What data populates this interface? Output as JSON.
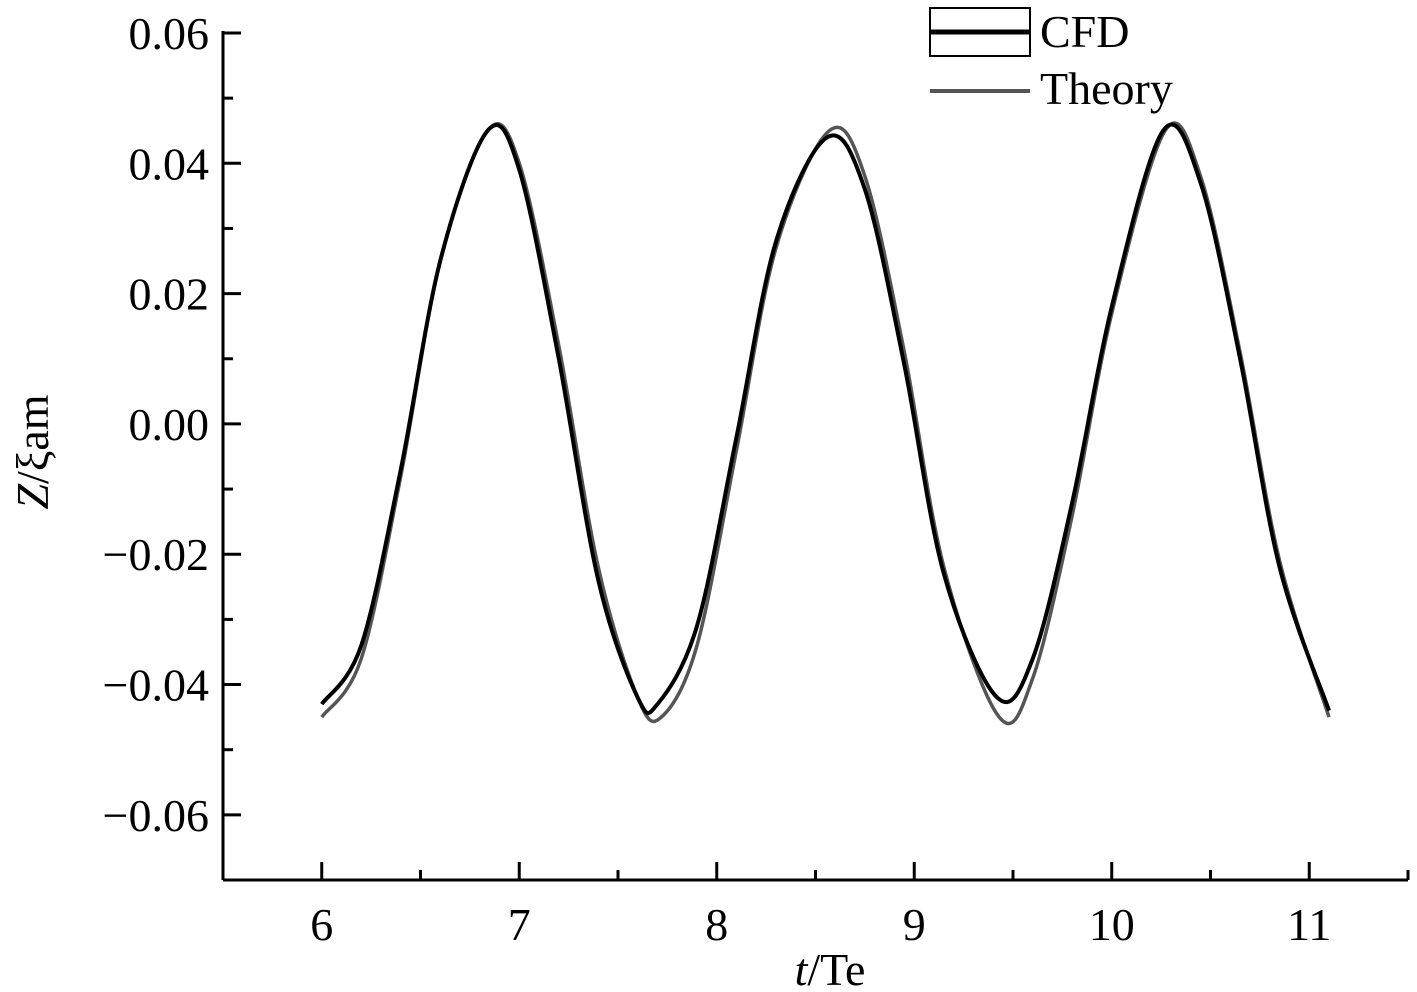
{
  "chart_data": {
    "type": "line",
    "title": "",
    "xlabel": {
      "italic": "t",
      "rest": "/Te"
    },
    "ylabel": {
      "italic": "Z",
      "rest": "/ξam"
    },
    "xlim": [
      5.5,
      11.5
    ],
    "ylim": [
      -0.07,
      0.06
    ],
    "x_ticks": [
      6,
      7,
      8,
      9,
      10,
      11
    ],
    "x_tick_labels": [
      "6",
      "7",
      "8",
      "9",
      "10",
      "11"
    ],
    "x_minor_step": 0.5,
    "y_ticks": [
      0.06,
      0.04,
      0.02,
      0.0,
      -0.02,
      -0.04,
      -0.06
    ],
    "y_tick_labels": [
      "0.06",
      "0.04",
      "0.02",
      "0.00",
      "−0.02",
      "−0.04",
      "−0.06"
    ],
    "y_minor_step": 0.01,
    "grid": false,
    "legend": {
      "position": "top-right"
    },
    "series": [
      {
        "name": "CFD",
        "color": "#000000",
        "legend_style": "boxed-thick",
        "x": [
          6.0,
          6.2,
          6.4,
          6.6,
          6.84,
          7.0,
          7.2,
          7.4,
          7.6,
          7.7,
          7.9,
          8.1,
          8.3,
          8.56,
          8.75,
          8.95,
          9.15,
          9.42,
          9.6,
          9.8,
          10.0,
          10.26,
          10.45,
          10.65,
          10.85,
          11.1
        ],
        "y": [
          -0.043,
          -0.034,
          -0.007,
          0.025,
          0.045,
          0.039,
          0.01,
          -0.024,
          -0.042,
          -0.043,
          -0.031,
          -0.002,
          0.028,
          0.044,
          0.036,
          0.009,
          -0.023,
          -0.042,
          -0.036,
          -0.012,
          0.018,
          0.045,
          0.037,
          0.01,
          -0.022,
          -0.044
        ]
      },
      {
        "name": "Theory",
        "color": "#555555",
        "legend_style": "thin",
        "x": [
          6.0,
          6.2,
          6.4,
          6.6,
          6.84,
          7.0,
          7.2,
          7.4,
          7.6,
          7.72,
          7.9,
          8.1,
          8.3,
          8.57,
          8.75,
          8.95,
          9.15,
          9.43,
          9.6,
          9.8,
          10.0,
          10.27,
          10.45,
          10.65,
          10.85,
          11.1
        ],
        "y": [
          -0.045,
          -0.036,
          -0.008,
          0.025,
          0.045,
          0.04,
          0.012,
          -0.022,
          -0.042,
          -0.045,
          -0.034,
          -0.004,
          0.027,
          0.045,
          0.038,
          0.011,
          -0.022,
          -0.045,
          -0.039,
          -0.014,
          0.017,
          0.045,
          0.038,
          0.011,
          -0.021,
          -0.045
        ]
      }
    ]
  }
}
